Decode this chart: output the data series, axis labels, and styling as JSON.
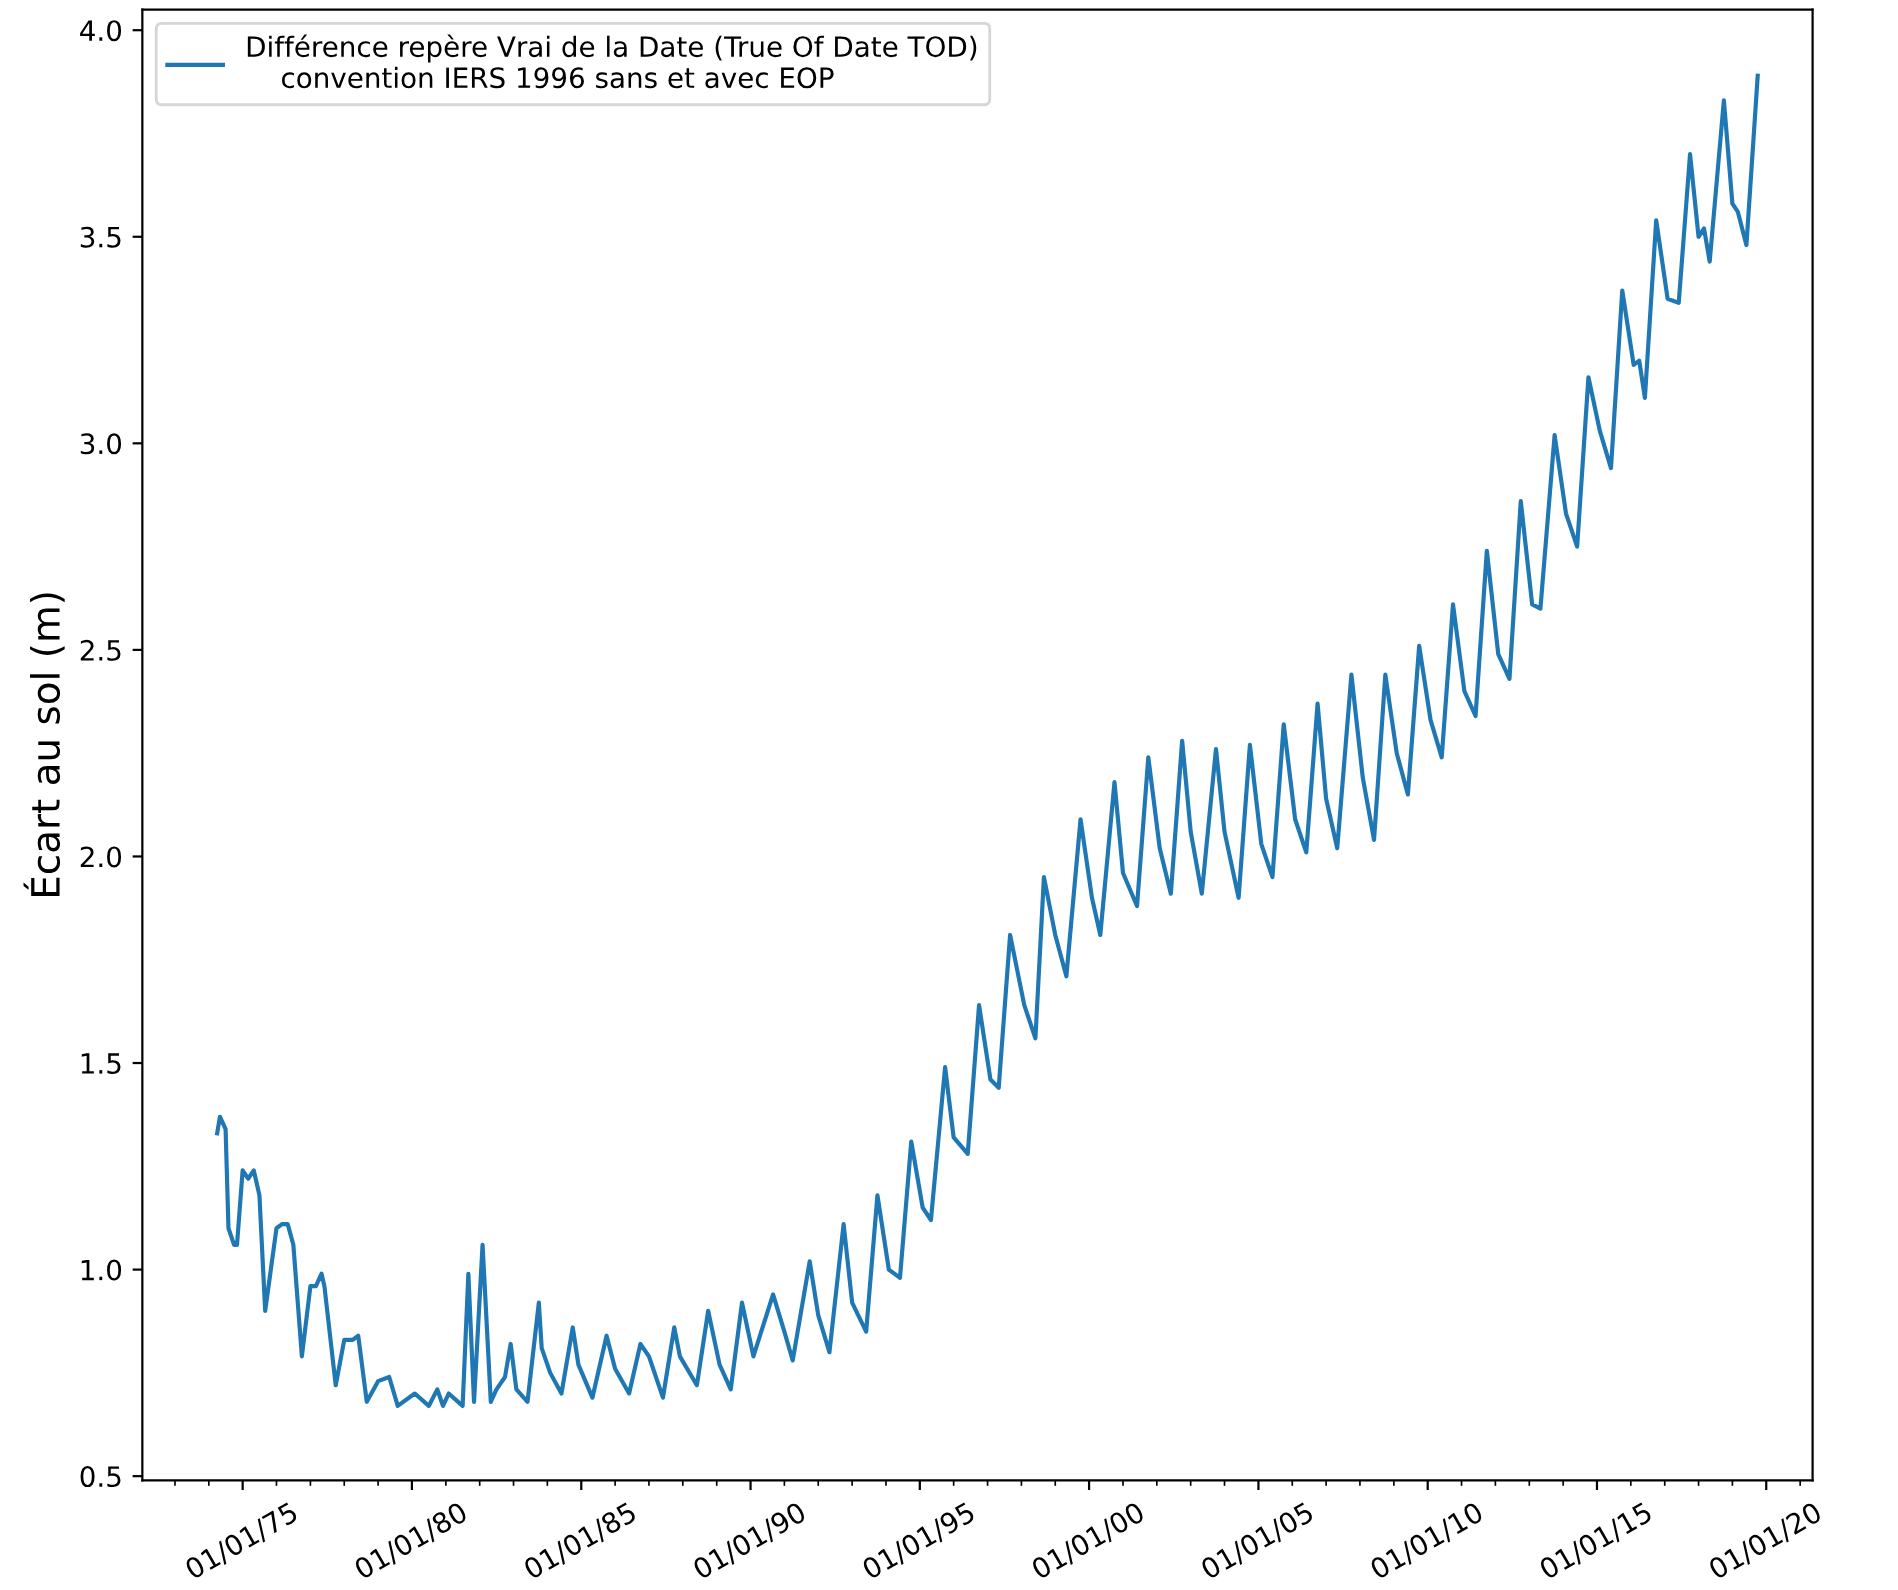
{
  "chart_data": {
    "type": "line",
    "ylabel": "Écart au sol (m)",
    "legend": "top left",
    "grid": false,
    "marker": "none",
    "line_style": "solid",
    "xlim": [
      "1972-01-15",
      "2021-05-15"
    ],
    "ylim": [
      0.49,
      4.05
    ],
    "yticks": [
      {
        "value": 0.5,
        "label": "0.5"
      },
      {
        "value": 1,
        "label": "1.0"
      },
      {
        "value": 1.5,
        "label": "1.5"
      },
      {
        "value": 2,
        "label": "2.0"
      },
      {
        "value": 2.5,
        "label": "2.5"
      },
      {
        "value": 3,
        "label": "3.0"
      },
      {
        "value": 3.5,
        "label": "3.5"
      },
      {
        "value": 4,
        "label": "4.0"
      }
    ],
    "xticks": [
      {
        "value": "1973-01-01",
        "label": null
      },
      {
        "value": "1974-01-01",
        "label": null
      },
      {
        "value": "1975-01-01",
        "label": "01/01/75"
      },
      {
        "value": "1976-01-01",
        "label": null
      },
      {
        "value": "1977-01-01",
        "label": null
      },
      {
        "value": "1978-01-01",
        "label": null
      },
      {
        "value": "1979-01-01",
        "label": null
      },
      {
        "value": "1980-01-01",
        "label": "01/01/80"
      },
      {
        "value": "1981-01-01",
        "label": null
      },
      {
        "value": "1982-01-01",
        "label": null
      },
      {
        "value": "1983-01-01",
        "label": null
      },
      {
        "value": "1984-01-01",
        "label": null
      },
      {
        "value": "1985-01-01",
        "label": "01/01/85"
      },
      {
        "value": "1986-01-01",
        "label": null
      },
      {
        "value": "1987-01-01",
        "label": null
      },
      {
        "value": "1988-01-01",
        "label": null
      },
      {
        "value": "1989-01-01",
        "label": null
      },
      {
        "value": "1990-01-01",
        "label": "01/01/90"
      },
      {
        "value": "1991-01-01",
        "label": null
      },
      {
        "value": "1992-01-01",
        "label": null
      },
      {
        "value": "1993-01-01",
        "label": null
      },
      {
        "value": "1994-01-01",
        "label": null
      },
      {
        "value": "1995-01-01",
        "label": "01/01/95"
      },
      {
        "value": "1996-01-01",
        "label": null
      },
      {
        "value": "1997-01-01",
        "label": null
      },
      {
        "value": "1998-01-01",
        "label": null
      },
      {
        "value": "1999-01-01",
        "label": null
      },
      {
        "value": "2000-01-01",
        "label": "01/01/00"
      },
      {
        "value": "2001-01-01",
        "label": null
      },
      {
        "value": "2002-01-01",
        "label": null
      },
      {
        "value": "2003-01-01",
        "label": null
      },
      {
        "value": "2004-01-01",
        "label": null
      },
      {
        "value": "2005-01-01",
        "label": "01/01/05"
      },
      {
        "value": "2006-01-01",
        "label": null
      },
      {
        "value": "2007-01-01",
        "label": null
      },
      {
        "value": "2008-01-01",
        "label": null
      },
      {
        "value": "2009-01-01",
        "label": null
      },
      {
        "value": "2010-01-01",
        "label": "01/01/10"
      },
      {
        "value": "2011-01-01",
        "label": null
      },
      {
        "value": "2012-01-01",
        "label": null
      },
      {
        "value": "2013-01-01",
        "label": null
      },
      {
        "value": "2014-01-01",
        "label": null
      },
      {
        "value": "2015-01-01",
        "label": "01/01/15"
      },
      {
        "value": "2016-01-01",
        "label": null
      },
      {
        "value": "2017-01-01",
        "label": null
      },
      {
        "value": "2018-01-01",
        "label": null
      },
      {
        "value": "2019-01-01",
        "label": null
      },
      {
        "value": "2020-01-01",
        "label": "01/01/20"
      },
      {
        "value": "2021-01-01",
        "label": null
      }
    ],
    "series": [
      {
        "name": "Différence repère Vrai de la Date (True Of Date TOD)\n    convention IERS 1996 sans et avec EOP",
        "color": "#1f77b4",
        "x": [
          "1974-04",
          "1974-05",
          "1974-07",
          "1974-08",
          "1974-10",
          "1974-11",
          "1975-01",
          "1975-03",
          "1975-05",
          "1975-07",
          "1975-09",
          "1976-01",
          "1976-03",
          "1976-05",
          "1976-07",
          "1976-10",
          "1977-01",
          "1977-03",
          "1977-05",
          "1977-06",
          "1977-10",
          "1978-01",
          "1978-04",
          "1978-06",
          "1978-09",
          "1979-01",
          "1979-05",
          "1979-08",
          "1980-02",
          "1980-07",
          "1980-10",
          "1980-12",
          "1981-02",
          "1981-07",
          "1981-09",
          "1981-11",
          "1982-02",
          "1982-05",
          "1982-07",
          "1982-10",
          "1982-12",
          "1983-02",
          "1983-06",
          "1983-10",
          "1983-11",
          "1984-02",
          "1984-06",
          "1984-10",
          "1984-12",
          "1985-05",
          "1985-10",
          "1986-01",
          "1986-06",
          "1986-10",
          "1987-01",
          "1987-06",
          "1987-10",
          "1987-12",
          "1988-06",
          "1988-10",
          "1989-02",
          "1989-06",
          "1989-10",
          "1990-02",
          "1990-09",
          "1991-01",
          "1991-04",
          "1991-10",
          "1992-01",
          "1992-05",
          "1992-10",
          "1993-01",
          "1993-06",
          "1993-10",
          "1994-02",
          "1994-06",
          "1994-10",
          "1995-02",
          "1995-05",
          "1995-10",
          "1996-01",
          "1996-06",
          "1996-10",
          "1997-02",
          "1997-05",
          "1997-09",
          "1998-02",
          "1998-06",
          "1998-09",
          "1999-01",
          "1999-05",
          "1999-10",
          "2000-02",
          "2000-05",
          "2000-10",
          "2001-01",
          "2001-06",
          "2001-10",
          "2002-02",
          "2002-06",
          "2002-10",
          "2003-01",
          "2003-05",
          "2003-10",
          "2004-01",
          "2004-06",
          "2004-10",
          "2005-02",
          "2005-06",
          "2005-10",
          "2006-02",
          "2006-06",
          "2006-10",
          "2007-01",
          "2007-05",
          "2007-10",
          "2008-02",
          "2008-06",
          "2008-10",
          "2009-02",
          "2009-06",
          "2009-10",
          "2010-02",
          "2010-06",
          "2010-10",
          "2011-02",
          "2011-06",
          "2011-10",
          "2012-02",
          "2012-06",
          "2012-10",
          "2013-02",
          "2013-05",
          "2013-10",
          "2014-02",
          "2014-06",
          "2014-10",
          "2015-02",
          "2015-06",
          "2015-10",
          "2016-02",
          "2016-04",
          "2016-06",
          "2016-10",
          "2017-02",
          "2017-06",
          "2017-10",
          "2018-01",
          "2018-03",
          "2018-05",
          "2018-10",
          "2019-01",
          "2019-03",
          "2019-06",
          "2019-10"
        ],
        "values": [
          1.33,
          1.37,
          1.34,
          1.1,
          1.06,
          1.06,
          1.24,
          1.22,
          1.24,
          1.18,
          0.9,
          1.1,
          1.11,
          1.11,
          1.06,
          0.79,
          0.96,
          0.96,
          0.99,
          0.96,
          0.72,
          0.83,
          0.83,
          0.84,
          0.68,
          0.73,
          0.74,
          0.67,
          0.7,
          0.67,
          0.71,
          0.67,
          0.7,
          0.67,
          0.99,
          0.68,
          1.06,
          0.68,
          0.71,
          0.74,
          0.82,
          0.71,
          0.68,
          0.92,
          0.81,
          0.75,
          0.7,
          0.86,
          0.77,
          0.69,
          0.84,
          0.76,
          0.7,
          0.82,
          0.79,
          0.69,
          0.86,
          0.79,
          0.72,
          0.9,
          0.77,
          0.71,
          0.92,
          0.79,
          0.94,
          0.85,
          0.78,
          1.02,
          0.89,
          0.8,
          1.11,
          0.92,
          0.85,
          1.18,
          1.0,
          0.98,
          1.31,
          1.15,
          1.12,
          1.49,
          1.32,
          1.28,
          1.64,
          1.46,
          1.44,
          1.81,
          1.64,
          1.56,
          1.95,
          1.81,
          1.71,
          2.09,
          1.9,
          1.81,
          2.18,
          1.96,
          1.88,
          2.24,
          2.02,
          1.91,
          2.28,
          2.06,
          1.91,
          2.26,
          2.06,
          1.9,
          2.27,
          2.03,
          1.95,
          2.32,
          2.09,
          2.01,
          2.37,
          2.14,
          2.02,
          2.44,
          2.19,
          2.04,
          2.44,
          2.25,
          2.15,
          2.51,
          2.33,
          2.24,
          2.61,
          2.4,
          2.34,
          2.74,
          2.49,
          2.43,
          2.86,
          2.61,
          2.6,
          3.02,
          2.83,
          2.75,
          3.16,
          3.03,
          2.94,
          3.37,
          3.19,
          3.2,
          3.11,
          3.54,
          3.35,
          3.34,
          3.7,
          3.5,
          3.52,
          3.44,
          3.83,
          3.58,
          3.56,
          3.48,
          3.89
        ]
      }
    ]
  }
}
